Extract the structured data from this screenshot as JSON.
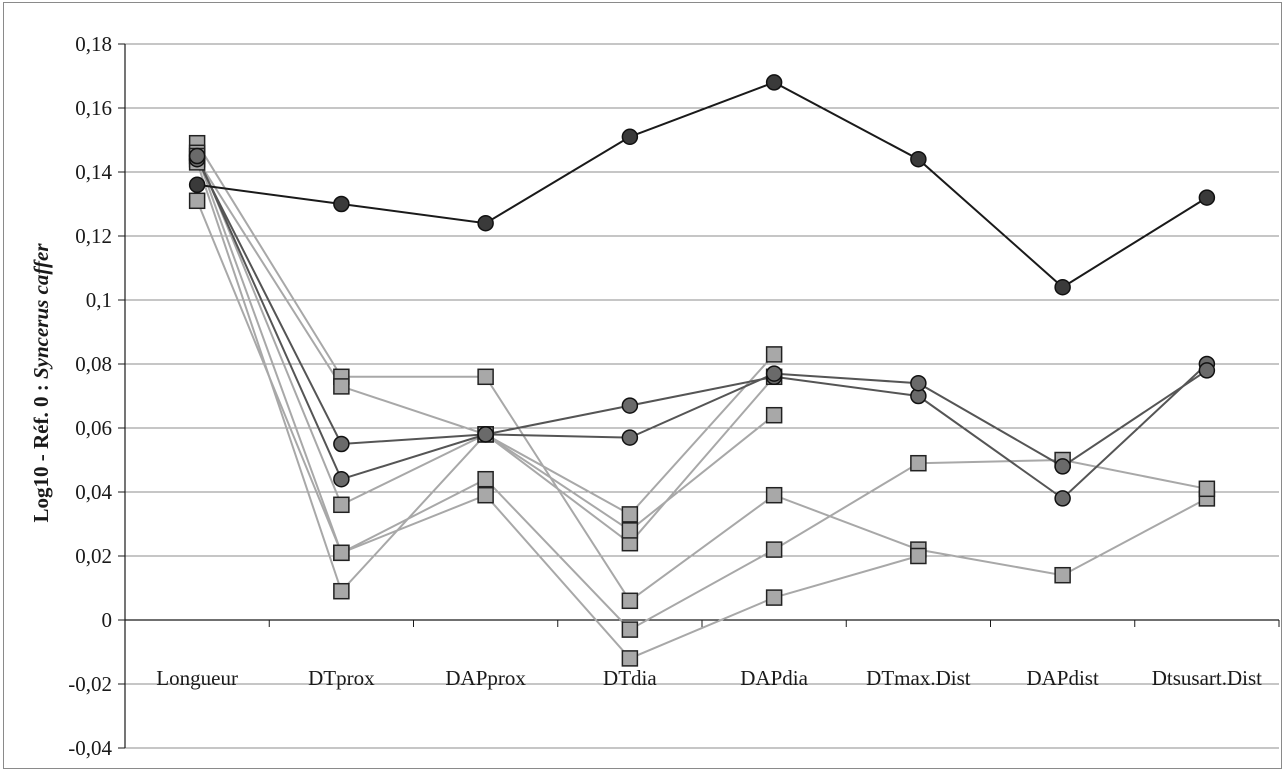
{
  "chart_data": {
    "type": "line",
    "title": "",
    "xlabel": "",
    "ylabel": "Log10 - Réf. 0 : ",
    "ylabel_species": "Syncerus caffer",
    "ylim": [
      -0.04,
      0.18
    ],
    "ytick_step": 0.02,
    "grid": true,
    "legend": "none",
    "categories": [
      "Longueur",
      "DTprox",
      "DAPprox",
      "DTdia",
      "DAPdia",
      "DTmax.Dist",
      "DAPdist",
      "Dtsusart.Dist"
    ],
    "series": [
      {
        "marker": "circle",
        "color": "#1a1a1a",
        "fill": "#3a3a3a",
        "values": [
          0.136,
          0.13,
          0.124,
          0.151,
          0.168,
          0.144,
          0.104,
          0.132
        ]
      },
      {
        "marker": "circle",
        "color": "#555555",
        "fill": "#6a6a6a",
        "values": [
          0.144,
          0.055,
          0.058,
          0.067,
          0.076,
          0.07,
          0.038,
          0.08
        ]
      },
      {
        "marker": "circle",
        "color": "#555555",
        "fill": "#6a6a6a",
        "values": [
          0.145,
          0.044,
          0.058,
          0.057,
          0.077,
          0.074,
          0.048,
          0.078
        ]
      },
      {
        "marker": "square",
        "color": "#a8a8a8",
        "fill": "#a8a8a8",
        "values": [
          0.149,
          0.076,
          0.076,
          0.006,
          0.039,
          0.022,
          0.014,
          0.038
        ]
      },
      {
        "marker": "square",
        "color": "#a8a8a8",
        "fill": "#a8a8a8",
        "values": [
          0.146,
          0.036,
          0.058,
          0.033,
          0.083,
          null,
          null,
          null
        ]
      },
      {
        "marker": "square",
        "color": "#a8a8a8",
        "fill": "#a8a8a8",
        "values": [
          0.145,
          0.021,
          0.044,
          -0.003,
          0.022,
          0.049,
          0.05,
          0.041
        ]
      },
      {
        "marker": "square",
        "color": "#a8a8a8",
        "fill": "#a8a8a8",
        "values": [
          0.131,
          0.021,
          0.039,
          -0.012,
          0.007,
          0.02,
          null,
          null
        ]
      },
      {
        "marker": "square",
        "color": "#a8a8a8",
        "fill": "#a8a8a8",
        "values": [
          0.144,
          0.073,
          0.058,
          0.024,
          0.076,
          null,
          null,
          null
        ]
      },
      {
        "marker": "square",
        "color": "#a8a8a8",
        "fill": "#a8a8a8",
        "values": [
          0.143,
          0.009,
          0.058,
          0.028,
          0.064,
          null,
          null,
          null
        ]
      }
    ]
  }
}
